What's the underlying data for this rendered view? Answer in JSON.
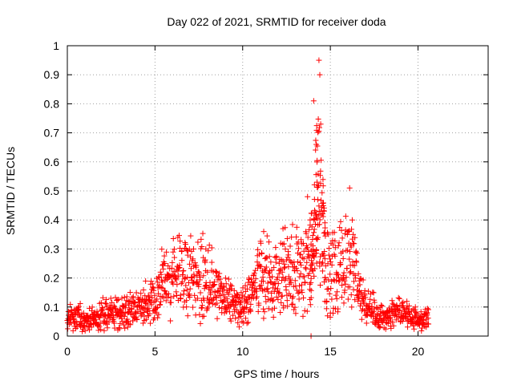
{
  "chart_data": {
    "type": "scatter",
    "title": "Day 022 of 2021, SRMTID for receiver doda",
    "xlabel": "GPS time / hours",
    "ylabel": "SRMTID / TECUs",
    "xlim": [
      0,
      24
    ],
    "ylim": [
      0,
      1
    ],
    "xticks": [
      0,
      5,
      10,
      15,
      20
    ],
    "yticks": [
      0,
      0.1,
      0.2,
      0.3,
      0.4,
      0.5,
      0.6,
      0.7,
      0.8,
      0.9,
      1
    ],
    "ytick_labels": [
      "0",
      "0.1",
      "0.2",
      "0.3",
      "0.4",
      "0.5",
      "0.6",
      "0.7",
      "0.8",
      "0.9",
      "1"
    ],
    "xtick_labels": [
      "0",
      "5",
      "10",
      "15",
      "20"
    ],
    "grid": true,
    "marker": "+",
    "color": "#ff0000",
    "series_profile": {
      "name": "SRMTID",
      "description_points": [
        [
          0.0,
          0.06
        ],
        [
          0.5,
          0.07
        ],
        [
          1.0,
          0.05
        ],
        [
          1.5,
          0.06
        ],
        [
          2.0,
          0.08
        ],
        [
          2.5,
          0.07
        ],
        [
          3.0,
          0.08
        ],
        [
          3.5,
          0.09
        ],
        [
          4.0,
          0.1
        ],
        [
          4.5,
          0.1
        ],
        [
          5.0,
          0.12
        ],
        [
          5.5,
          0.17
        ],
        [
          6.0,
          0.18
        ],
        [
          6.5,
          0.2
        ],
        [
          7.0,
          0.2
        ],
        [
          7.5,
          0.2
        ],
        [
          8.0,
          0.17
        ],
        [
          8.5,
          0.15
        ],
        [
          9.0,
          0.13
        ],
        [
          9.5,
          0.1
        ],
        [
          10.0,
          0.1
        ],
        [
          10.5,
          0.14
        ],
        [
          11.0,
          0.2
        ],
        [
          11.5,
          0.2
        ],
        [
          12.0,
          0.18
        ],
        [
          12.5,
          0.2
        ],
        [
          13.0,
          0.22
        ],
        [
          13.5,
          0.24
        ],
        [
          14.0,
          0.3
        ],
        [
          14.3,
          0.45
        ],
        [
          14.6,
          0.3
        ],
        [
          15.0,
          0.22
        ],
        [
          15.5,
          0.22
        ],
        [
          16.0,
          0.25
        ],
        [
          16.5,
          0.2
        ],
        [
          17.0,
          0.1
        ],
        [
          17.5,
          0.08
        ],
        [
          18.0,
          0.06
        ],
        [
          18.5,
          0.07
        ],
        [
          19.0,
          0.08
        ],
        [
          19.5,
          0.07
        ],
        [
          20.0,
          0.05
        ],
        [
          20.6,
          0.06
        ]
      ],
      "peaks": [
        [
          6.3,
          0.34
        ],
        [
          7.2,
          0.3
        ],
        [
          7.9,
          0.3
        ],
        [
          11.2,
          0.36
        ],
        [
          12.3,
          0.37
        ],
        [
          13.7,
          0.48
        ],
        [
          14.05,
          0.81
        ],
        [
          14.2,
          0.66
        ],
        [
          14.35,
          0.95
        ],
        [
          14.4,
          0.9
        ],
        [
          14.45,
          0.73
        ],
        [
          16.1,
          0.51
        ],
        [
          16.3,
          0.35
        ]
      ],
      "outliers": [
        [
          13.9,
          0.0
        ]
      ]
    }
  }
}
